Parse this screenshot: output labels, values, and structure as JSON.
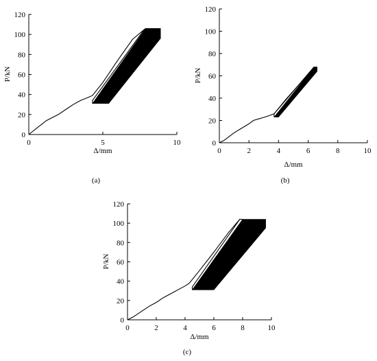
{
  "chart_data": [
    {
      "type": "line",
      "panel_label": "(a)",
      "xlabel": "Δ/mm",
      "ylabel": "P/kN",
      "xlim": [
        0,
        10
      ],
      "ylim": [
        0,
        120
      ],
      "xticks": [
        0,
        5,
        10
      ],
      "yticks": [
        0,
        20,
        40,
        60,
        80,
        100,
        120
      ],
      "grid": false,
      "series": [
        {
          "role": "monotonic-envelope",
          "x": [
            0,
            0.5,
            1.2,
            2.0,
            2.5,
            3.0,
            3.5,
            4.0,
            4.3,
            5.0,
            6.0,
            7.0,
            7.8
          ],
          "y": [
            0,
            6,
            14,
            20,
            25,
            30,
            34,
            37,
            39,
            52,
            74,
            95,
            105
          ]
        },
        {
          "role": "fatigue-cycle-band",
          "x": [
            4.3,
            5.4,
            8.9,
            8.9,
            7.9
          ],
          "y": [
            31,
            31,
            96,
            106,
            106
          ]
        }
      ]
    },
    {
      "type": "line",
      "panel_label": "(b)",
      "xlabel": "Δ/mm",
      "ylabel": "P/kN",
      "xlim": [
        0,
        10
      ],
      "ylim": [
        0,
        120
      ],
      "xticks": [
        0,
        2,
        4,
        6,
        8,
        10
      ],
      "yticks": [
        0,
        20,
        40,
        60,
        80,
        100,
        120
      ],
      "grid": false,
      "series": [
        {
          "role": "monotonic-envelope",
          "x": [
            0,
            0.3,
            0.6,
            1.0,
            1.5,
            2.0,
            2.3,
            2.8,
            3.3,
            3.7,
            4.5,
            5.5,
            6.4
          ],
          "y": [
            0,
            2,
            5,
            9,
            13,
            17,
            20,
            22,
            24,
            26,
            39,
            54,
            68
          ]
        },
        {
          "role": "fatigue-cycle-band",
          "x": [
            3.7,
            4.0,
            6.6,
            6.6,
            6.4
          ],
          "y": [
            23,
            23,
            64,
            68,
            68
          ]
        }
      ]
    },
    {
      "type": "line",
      "panel_label": "(c)",
      "xlabel": "Δ/mm",
      "ylabel": "P/kN",
      "xlim": [
        0,
        10
      ],
      "ylim": [
        0,
        120
      ],
      "xticks": [
        0,
        2,
        4,
        6,
        8,
        10
      ],
      "yticks": [
        0,
        20,
        40,
        60,
        80,
        100,
        120
      ],
      "grid": false,
      "series": [
        {
          "role": "monotonic-envelope",
          "x": [
            0,
            0.4,
            1.0,
            1.5,
            2.0,
            2.5,
            3.0,
            3.5,
            4.0,
            4.3,
            5.0,
            6.0,
            7.0,
            7.8
          ],
          "y": [
            0,
            3,
            9,
            14,
            18,
            23,
            27,
            31,
            35,
            38,
            51,
            70,
            90,
            104
          ]
        },
        {
          "role": "fatigue-cycle-band",
          "x": [
            4.5,
            6.0,
            9.6,
            9.6,
            8.0
          ],
          "y": [
            31,
            31,
            95,
            104,
            104
          ]
        }
      ]
    }
  ]
}
